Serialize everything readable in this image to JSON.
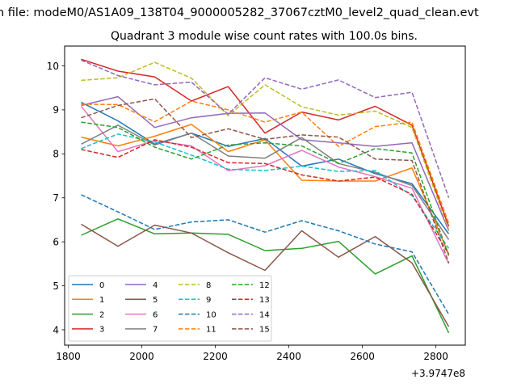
{
  "figure": {
    "suptitle": "n file: modeM0/AS1A09_138T04_9000005282_37067cztM0_level2_quad_clean.evt"
  },
  "chart_data": {
    "type": "line",
    "title": "Quadrant 3 module wise count rates with 100.0s bins.",
    "xlabel": "",
    "ylabel": "",
    "x_offset_label": "+3.9747e8",
    "xlim": [
      1790,
      2880
    ],
    "ylim": [
      3.65,
      10.45
    ],
    "xticks": [
      1800,
      2000,
      2200,
      2400,
      2600,
      2800
    ],
    "yticks": [
      4,
      5,
      6,
      7,
      8,
      9,
      10
    ],
    "grid": false,
    "legend": {
      "position": "lower-left",
      "columns": 4
    },
    "x": [
      1835,
      1935,
      2035,
      2135,
      2235,
      2335,
      2435,
      2535,
      2635,
      2735,
      2835
    ],
    "series": [
      {
        "name": "0",
        "color": "#1f77b4",
        "dash": "solid",
        "values": [
          9.17,
          8.75,
          8.22,
          8.47,
          8.17,
          8.35,
          7.72,
          7.88,
          7.55,
          7.32,
          6.18
        ]
      },
      {
        "name": "1",
        "color": "#ff7f0e",
        "dash": "solid",
        "values": [
          8.38,
          8.18,
          8.4,
          8.67,
          8.05,
          8.32,
          7.4,
          7.38,
          7.38,
          7.68,
          5.72
        ]
      },
      {
        "name": "2",
        "color": "#2ca02c",
        "dash": "solid",
        "values": [
          6.15,
          6.52,
          6.18,
          6.2,
          6.17,
          5.8,
          5.85,
          6.01,
          5.27,
          5.68,
          3.93
        ]
      },
      {
        "name": "3",
        "color": "#d62728",
        "dash": "solid",
        "values": [
          10.15,
          9.88,
          9.75,
          9.2,
          9.53,
          8.47,
          8.95,
          8.77,
          9.08,
          8.65,
          6.35
        ]
      },
      {
        "name": "4",
        "color": "#9467bd",
        "dash": "solid",
        "values": [
          9.1,
          9.3,
          8.6,
          8.82,
          8.92,
          8.93,
          8.32,
          8.25,
          8.17,
          8.25,
          6.25
        ]
      },
      {
        "name": "5",
        "color": "#8c564b",
        "dash": "solid",
        "values": [
          6.4,
          5.9,
          6.38,
          6.2,
          5.75,
          5.35,
          6.25,
          5.65,
          6.12,
          5.52,
          4.07
        ]
      },
      {
        "name": "6",
        "color": "#e377c2",
        "dash": "solid",
        "values": [
          9.08,
          8.05,
          8.3,
          8.18,
          7.62,
          7.73,
          8.08,
          7.7,
          7.48,
          7.22,
          5.5
        ]
      },
      {
        "name": "7",
        "color": "#7f7f7f",
        "dash": "solid",
        "values": [
          8.22,
          8.65,
          8.2,
          8.47,
          7.95,
          7.9,
          8.37,
          7.78,
          7.58,
          7.28,
          6.05
        ]
      },
      {
        "name": "8",
        "color": "#bcbd22",
        "dash": "dashed",
        "values": [
          9.67,
          9.73,
          10.08,
          9.72,
          8.87,
          9.57,
          9.07,
          8.88,
          8.97,
          8.6,
          6.27
        ]
      },
      {
        "name": "9",
        "color": "#17becf",
        "dash": "dashed",
        "values": [
          8.12,
          8.45,
          8.27,
          7.97,
          7.65,
          7.62,
          7.72,
          7.6,
          7.62,
          7.05,
          5.85
        ]
      },
      {
        "name": "10",
        "color": "#1f77b4",
        "dash": "dashed",
        "values": [
          7.07,
          6.68,
          6.28,
          6.45,
          6.5,
          6.22,
          6.48,
          6.25,
          5.95,
          5.77,
          4.35
        ]
      },
      {
        "name": "11",
        "color": "#ff7f0e",
        "dash": "dashed",
        "values": [
          9.13,
          9.12,
          8.73,
          9.2,
          9.0,
          8.72,
          8.95,
          8.17,
          8.62,
          8.72,
          6.42
        ]
      },
      {
        "name": "12",
        "color": "#2ca02c",
        "dash": "dashed",
        "values": [
          8.72,
          8.6,
          8.15,
          7.88,
          8.2,
          8.25,
          8.18,
          7.78,
          8.12,
          8.02,
          5.68
        ]
      },
      {
        "name": "13",
        "color": "#d62728",
        "dash": "dashed",
        "values": [
          8.1,
          7.92,
          8.32,
          8.15,
          7.8,
          7.78,
          7.52,
          7.38,
          7.47,
          7.08,
          5.72
        ]
      },
      {
        "name": "14",
        "color": "#9467bd",
        "dash": "dashed",
        "values": [
          10.13,
          9.78,
          9.57,
          9.63,
          8.9,
          9.73,
          9.47,
          9.68,
          9.28,
          9.4,
          7.0
        ]
      },
      {
        "name": "15",
        "color": "#8c564b",
        "dash": "dashed",
        "values": [
          8.82,
          9.1,
          9.25,
          8.37,
          8.57,
          8.33,
          8.43,
          8.38,
          7.88,
          7.85,
          5.52
        ]
      }
    ]
  }
}
